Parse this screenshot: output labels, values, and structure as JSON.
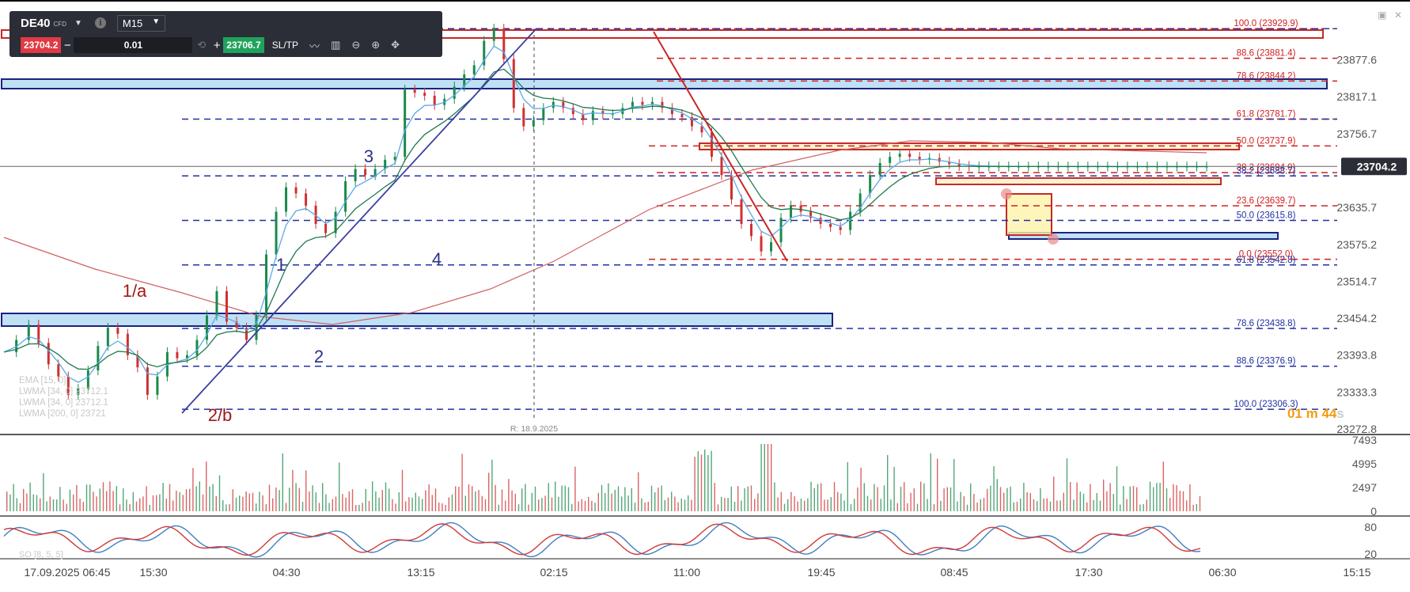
{
  "toolbar": {
    "symbol": "DE40",
    "symbol_type": "CFD",
    "timeframe": "M15",
    "bid": "23704.2",
    "ask": "23706.7",
    "quantity": "0.01",
    "minus": "−",
    "plus": "+",
    "sltp": "SL/TP"
  },
  "price_tag": "23704.2",
  "timer": {
    "value": "01 m 44",
    "unit": "s"
  },
  "ref_label": "R: 18.9.2025",
  "colors": {
    "up": "#1a8a4a",
    "down": "#d03030",
    "ema15": "#5aa9e6",
    "lwma34a": "#1f7a4f",
    "lwma200": "#d06060",
    "fib_red": "#d02020",
    "fib_blue": "#2030a0",
    "so_k": "#3f7fc0",
    "so_d": "#d03a3a"
  },
  "chart_data": {
    "type": "line",
    "instrument": "DE40",
    "timeframe": "M15",
    "y_ticks": [
      "23877.6",
      "23817.1",
      "23756.7",
      "23696.2",
      "23635.7",
      "23575.2",
      "23514.7",
      "23454.2",
      "23393.8",
      "23333.3",
      "23272.8"
    ],
    "x_ticks": [
      "17.09.2025 06:45",
      "15:30",
      "04:30",
      "13:15",
      "02:15",
      "11:00",
      "19:45",
      "08:45",
      "17:30",
      "06:30",
      "15:15"
    ],
    "ylim": [
      23272.8,
      23938
    ],
    "price_series": {
      "name": "DE40 M15",
      "x": [
        0,
        5,
        10,
        14,
        18,
        22,
        26,
        30,
        34,
        38,
        42,
        46,
        50,
        54,
        58,
        62,
        66,
        70,
        74,
        78,
        82,
        86,
        90,
        94,
        98,
        102,
        106,
        110,
        114,
        118,
        122,
        126,
        130,
        134,
        138,
        142,
        146,
        150,
        154,
        158,
        162,
        166,
        170,
        174,
        178,
        182,
        186,
        190,
        194,
        198,
        202,
        206,
        210,
        214,
        218,
        222,
        226,
        230,
        234,
        238,
        242,
        246,
        250,
        254,
        258,
        262,
        266,
        270,
        274,
        278,
        282,
        286,
        290,
        294,
        298,
        302,
        306,
        310,
        314,
        318,
        322,
        326,
        330,
        334,
        338,
        342,
        346,
        350,
        354,
        358,
        362,
        366,
        370,
        374,
        378,
        382,
        386,
        390,
        394,
        398,
        402,
        406,
        410,
        414,
        418,
        422,
        426,
        430,
        434,
        438,
        442,
        446,
        450,
        454,
        458,
        462,
        466,
        470,
        474,
        478,
        482,
        486
      ],
      "y": [
        23400,
        23420,
        23445,
        23415,
        23380,
        23360,
        23330,
        23340,
        23370,
        23410,
        23440,
        23430,
        23395,
        23375,
        23330,
        23360,
        23400,
        23390,
        23395,
        23420,
        23460,
        23500,
        23450,
        23440,
        23420,
        23460,
        23560,
        23630,
        23670,
        23660,
        23640,
        23610,
        23595,
        23630,
        23680,
        23700,
        23690,
        23700,
        23715,
        23720,
        23830,
        23825,
        23820,
        23805,
        23815,
        23835,
        23855,
        23870,
        23910,
        23930,
        23880,
        23800,
        23770,
        23780,
        23800,
        23810,
        23800,
        23790,
        23780,
        23795,
        23790,
        23790,
        23800,
        23810,
        23805,
        23810,
        23800,
        23790,
        23785,
        23770,
        23760,
        23720,
        23690,
        23650,
        23610,
        23590,
        23565,
        23580,
        23620,
        23640,
        23630,
        23620,
        23610,
        23605,
        23600,
        23630,
        23660,
        23690,
        23710,
        23720,
        23725,
        23720,
        23715,
        23718,
        23712,
        23708,
        23705,
        23704,
        23704,
        23704,
        23704,
        23704,
        23704,
        23704,
        23704,
        23704,
        23704,
        23704,
        23704,
        23704,
        23704,
        23704,
        23704,
        23704,
        23704,
        23704,
        23704,
        23704,
        23704,
        23704,
        23704,
        23704
      ]
    },
    "indicators": {
      "legend": [
        "EMA [15, 0]",
        "LWMA [34, 0]",
        "LWMA [34, 0]",
        "LWMA [200, 0]"
      ],
      "lwma200_values": [
        23721.0,
        23712.1
      ],
      "volume_ticks": [
        "7493",
        "4995",
        "2497",
        "0"
      ],
      "stochastic": {
        "name": "SO [8, 5, 5]",
        "ticks": [
          "80",
          "20"
        ]
      }
    },
    "fib_right": [
      {
        "level": "100.0",
        "price": "23929.9",
        "color": "red"
      },
      {
        "level": "88.6",
        "price": "23881.4",
        "color": "red"
      },
      {
        "level": "78.6",
        "price": "23844.2",
        "color": "red"
      },
      {
        "level": "61.8",
        "price": "23781.7",
        "color": "red"
      },
      {
        "level": "50.0",
        "price": "23737.9",
        "color": "red"
      },
      {
        "level": "38.2",
        "price": "23694.0",
        "color": "red"
      },
      {
        "level": "23.6",
        "price": "23639.7",
        "color": "red"
      },
      {
        "level": "0.0",
        "price": "23552.0",
        "color": "red"
      },
      {
        "level": "38.2",
        "price": "23688.7",
        "color": "blue"
      },
      {
        "level": "50.0",
        "price": "23615.8",
        "color": "blue"
      },
      {
        "level": "61.8",
        "price": "23542.8",
        "color": "blue"
      },
      {
        "level": "78.6",
        "price": "23438.8",
        "color": "blue"
      },
      {
        "level": "88.6",
        "price": "23376.9",
        "color": "blue"
      },
      {
        "level": "100.0",
        "price": "23306.3",
        "color": "blue"
      }
    ],
    "wave_labels": [
      "1/a",
      "2/b",
      "1",
      "2",
      "3",
      "4"
    ]
  }
}
